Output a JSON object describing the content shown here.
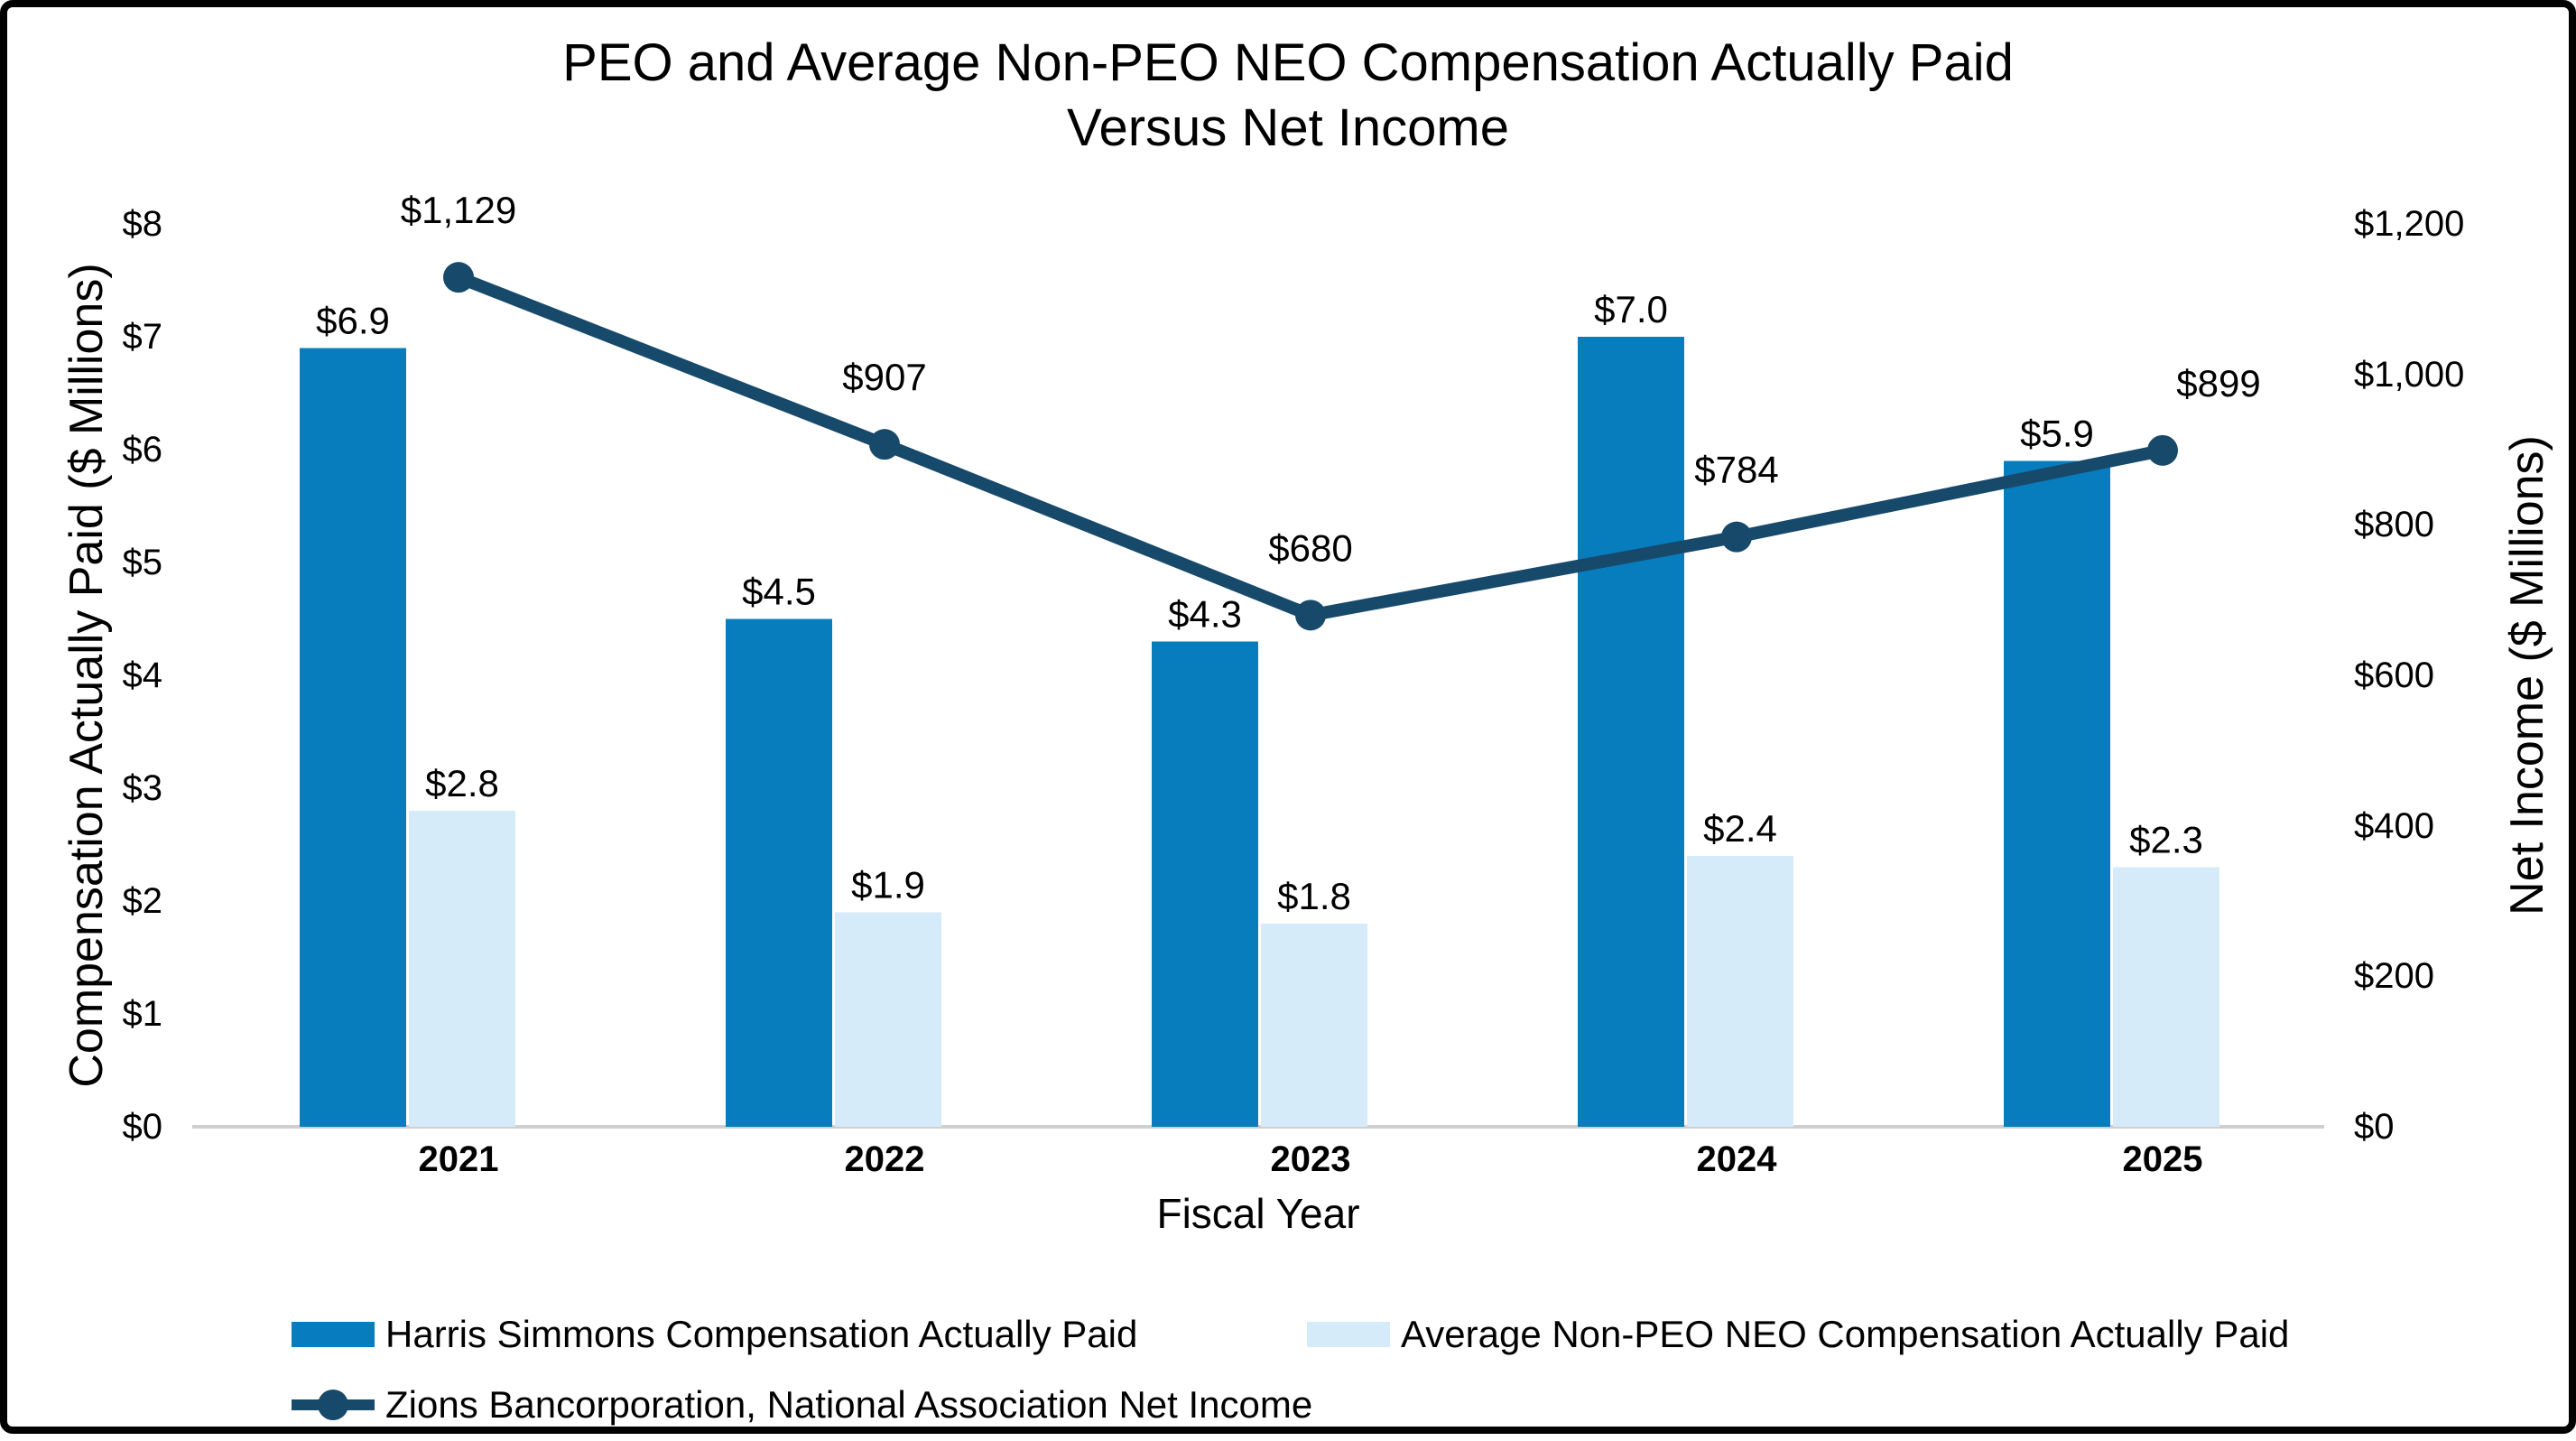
{
  "chart_data": {
    "type": "combo-bar-line",
    "title": "PEO and Average Non-PEO NEO Compensation Actually Paid Versus Net Income",
    "title_lines": [
      "PEO and Average Non-PEO NEO Compensation Actually Paid",
      "Versus Net Income"
    ],
    "background_color": "#FFFFFF",
    "frame_color": "#000000",
    "axis_line_color": "#D0CECE",
    "grid": "off",
    "legend_position": "bottom-left",
    "x_axis": {
      "label": "Fiscal Year",
      "categories": [
        "2021",
        "2022",
        "2023",
        "2024",
        "2025"
      ]
    },
    "y_left": {
      "label": "Compensation Actually Paid ($ Millions)",
      "min": 0,
      "max": 8,
      "step": 1,
      "tick_labels": [
        "$0",
        "$1",
        "$2",
        "$3",
        "$4",
        "$5",
        "$6",
        "$7",
        "$8"
      ]
    },
    "y_right": {
      "label": "Net Income ($ Millions)",
      "min": 0,
      "max": 1200,
      "step": 200,
      "tick_labels": [
        "$0",
        "$200",
        "$400",
        "$600",
        "$800",
        "$1,000",
        "$1,200"
      ]
    },
    "series": [
      {
        "name": "Harris Simmons Compensation Actually Paid",
        "type": "bar",
        "axis": "left",
        "color": "#077DBE",
        "values": [
          6.9,
          4.5,
          4.3,
          7.0,
          5.9
        ],
        "labels": [
          "$6.9",
          "$4.5",
          "$4.3",
          "$7.0",
          "$5.9"
        ]
      },
      {
        "name": "Average Non-PEO NEO Compensation Actually Paid",
        "type": "bar",
        "axis": "left",
        "color": "#D6EBF9",
        "values": [
          2.8,
          1.9,
          1.8,
          2.4,
          2.3
        ],
        "labels": [
          "$2.8",
          "$1.9",
          "$1.8",
          "$2.4",
          "$2.3"
        ]
      },
      {
        "name": "Zions Bancorporation, National Association Net Income",
        "type": "line",
        "axis": "right",
        "color": "#17496B",
        "values": [
          1129,
          907,
          680,
          784,
          899
        ],
        "labels": [
          "$1,129",
          "$907",
          "$680",
          "$784",
          "$899"
        ]
      }
    ]
  }
}
